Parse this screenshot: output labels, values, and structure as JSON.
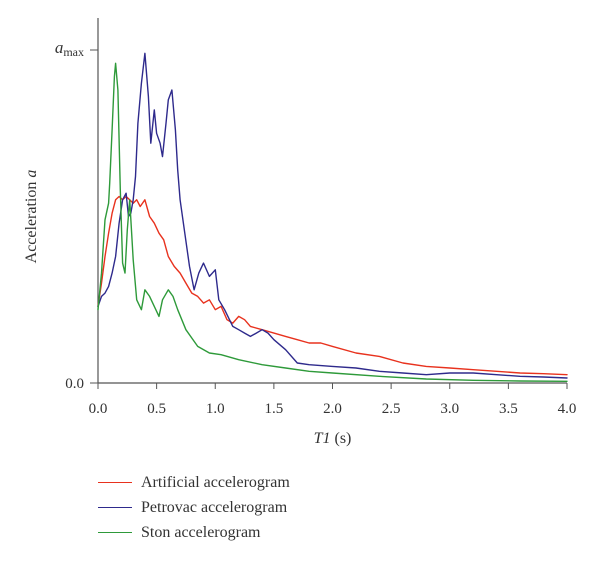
{
  "chart_data": {
    "type": "line",
    "xlabel": "T1 (s)",
    "ylabel": "Acceleration a",
    "x_ticks": [
      "0.0",
      "0.5",
      "1.0",
      "1.5",
      "2.0",
      "2.5",
      "3.0",
      "3.5",
      "4.0"
    ],
    "y_ticks": [
      "0.0",
      "a_max"
    ],
    "xlim": [
      0,
      4.0
    ],
    "ylim": [
      0,
      1.0
    ],
    "grid": false,
    "legend_position": "bottom",
    "series": [
      {
        "name": "Artificial accelerogram",
        "color": "#e8321e",
        "x": [
          0.0,
          0.03,
          0.06,
          0.09,
          0.12,
          0.15,
          0.18,
          0.21,
          0.24,
          0.27,
          0.3,
          0.33,
          0.36,
          0.4,
          0.44,
          0.48,
          0.52,
          0.56,
          0.6,
          0.65,
          0.7,
          0.75,
          0.8,
          0.85,
          0.9,
          0.95,
          1.0,
          1.05,
          1.1,
          1.15,
          1.2,
          1.25,
          1.3,
          1.4,
          1.5,
          1.6,
          1.7,
          1.8,
          1.9,
          2.0,
          2.2,
          2.4,
          2.6,
          2.8,
          3.0,
          3.2,
          3.4,
          3.6,
          3.8,
          4.0
        ],
        "y": [
          0.23,
          0.3,
          0.38,
          0.45,
          0.51,
          0.55,
          0.56,
          0.55,
          0.56,
          0.55,
          0.54,
          0.55,
          0.53,
          0.55,
          0.5,
          0.48,
          0.45,
          0.43,
          0.38,
          0.35,
          0.33,
          0.3,
          0.27,
          0.26,
          0.24,
          0.25,
          0.22,
          0.23,
          0.19,
          0.18,
          0.2,
          0.19,
          0.17,
          0.16,
          0.15,
          0.14,
          0.13,
          0.12,
          0.12,
          0.11,
          0.09,
          0.08,
          0.06,
          0.05,
          0.045,
          0.04,
          0.035,
          0.03,
          0.028,
          0.025
        ]
      },
      {
        "name": "Petrovac accelerogram",
        "color": "#2e2a8c",
        "x": [
          0.0,
          0.03,
          0.06,
          0.09,
          0.12,
          0.15,
          0.18,
          0.21,
          0.24,
          0.26,
          0.28,
          0.3,
          0.32,
          0.34,
          0.37,
          0.4,
          0.43,
          0.45,
          0.48,
          0.5,
          0.53,
          0.55,
          0.58,
          0.6,
          0.63,
          0.66,
          0.68,
          0.7,
          0.74,
          0.78,
          0.82,
          0.86,
          0.9,
          0.95,
          1.0,
          1.03,
          1.08,
          1.15,
          1.2,
          1.25,
          1.3,
          1.35,
          1.4,
          1.45,
          1.5,
          1.6,
          1.7,
          1.8,
          2.0,
          2.2,
          2.4,
          2.6,
          2.8,
          3.0,
          3.2,
          3.4,
          3.6,
          3.8,
          4.0
        ],
        "y": [
          0.23,
          0.26,
          0.27,
          0.29,
          0.33,
          0.38,
          0.48,
          0.55,
          0.57,
          0.5,
          0.51,
          0.55,
          0.62,
          0.78,
          0.9,
          0.99,
          0.86,
          0.72,
          0.82,
          0.75,
          0.72,
          0.68,
          0.78,
          0.85,
          0.88,
          0.76,
          0.64,
          0.55,
          0.45,
          0.35,
          0.28,
          0.33,
          0.36,
          0.32,
          0.34,
          0.25,
          0.22,
          0.17,
          0.16,
          0.15,
          0.14,
          0.15,
          0.16,
          0.15,
          0.13,
          0.1,
          0.06,
          0.055,
          0.05,
          0.045,
          0.035,
          0.03,
          0.025,
          0.03,
          0.03,
          0.025,
          0.02,
          0.018,
          0.015
        ]
      },
      {
        "name": "Ston accelerogram",
        "color": "#2e9a3a",
        "x": [
          0.0,
          0.03,
          0.06,
          0.09,
          0.1,
          0.12,
          0.14,
          0.15,
          0.17,
          0.19,
          0.21,
          0.23,
          0.25,
          0.27,
          0.3,
          0.33,
          0.37,
          0.4,
          0.44,
          0.48,
          0.52,
          0.55,
          0.6,
          0.64,
          0.68,
          0.75,
          0.85,
          0.95,
          1.05,
          1.2,
          1.4,
          1.6,
          1.8,
          2.0,
          2.4,
          2.8,
          3.2,
          3.6,
          4.0
        ],
        "y": [
          0.22,
          0.33,
          0.49,
          0.54,
          0.6,
          0.76,
          0.92,
          0.96,
          0.88,
          0.58,
          0.36,
          0.33,
          0.46,
          0.55,
          0.37,
          0.25,
          0.22,
          0.28,
          0.26,
          0.23,
          0.2,
          0.25,
          0.28,
          0.26,
          0.22,
          0.16,
          0.11,
          0.09,
          0.085,
          0.07,
          0.055,
          0.045,
          0.035,
          0.03,
          0.02,
          0.012,
          0.008,
          0.006,
          0.005
        ]
      }
    ]
  }
}
